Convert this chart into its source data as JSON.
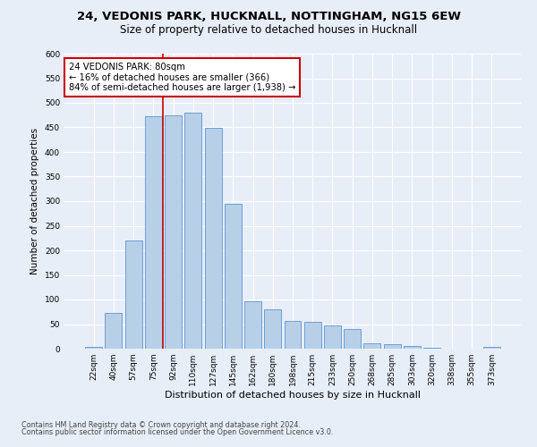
{
  "title_line1": "24, VEDONIS PARK, HUCKNALL, NOTTINGHAM, NG15 6EW",
  "title_line2": "Size of property relative to detached houses in Hucknall",
  "xlabel": "Distribution of detached houses by size in Hucknall",
  "ylabel": "Number of detached properties",
  "categories": [
    "22sqm",
    "40sqm",
    "57sqm",
    "75sqm",
    "92sqm",
    "110sqm",
    "127sqm",
    "145sqm",
    "162sqm",
    "180sqm",
    "198sqm",
    "215sqm",
    "233sqm",
    "250sqm",
    "268sqm",
    "285sqm",
    "303sqm",
    "320sqm",
    "338sqm",
    "355sqm",
    "373sqm"
  ],
  "values": [
    4,
    72,
    220,
    472,
    475,
    480,
    449,
    295,
    96,
    80,
    56,
    55,
    48,
    40,
    11,
    10,
    5,
    1,
    0,
    0,
    4
  ],
  "bar_color": "#b8cfe8",
  "bar_edge_color": "#6a9fd8",
  "vline_x_index": 3,
  "vline_color": "#cc0000",
  "annotation_text": "24 VEDONIS PARK: 80sqm\n← 16% of detached houses are smaller (366)\n84% of semi-detached houses are larger (1,938) →",
  "annotation_box_color": "#ffffff",
  "annotation_box_edge_color": "#cc0000",
  "ylim": [
    0,
    600
  ],
  "yticks": [
    0,
    50,
    100,
    150,
    200,
    250,
    300,
    350,
    400,
    450,
    500,
    550,
    600
  ],
  "footer_line1": "Contains HM Land Registry data © Crown copyright and database right 2024.",
  "footer_line2": "Contains public sector information licensed under the Open Government Licence v3.0.",
  "bg_color": "#e8eef8",
  "plot_bg_color": "#e8eef8",
  "title1_fontsize": 9.5,
  "title2_fontsize": 8.5,
  "xlabel_fontsize": 8,
  "ylabel_fontsize": 7.5,
  "tick_fontsize": 6.5,
  "annot_fontsize": 7.2,
  "footer_fontsize": 5.8
}
